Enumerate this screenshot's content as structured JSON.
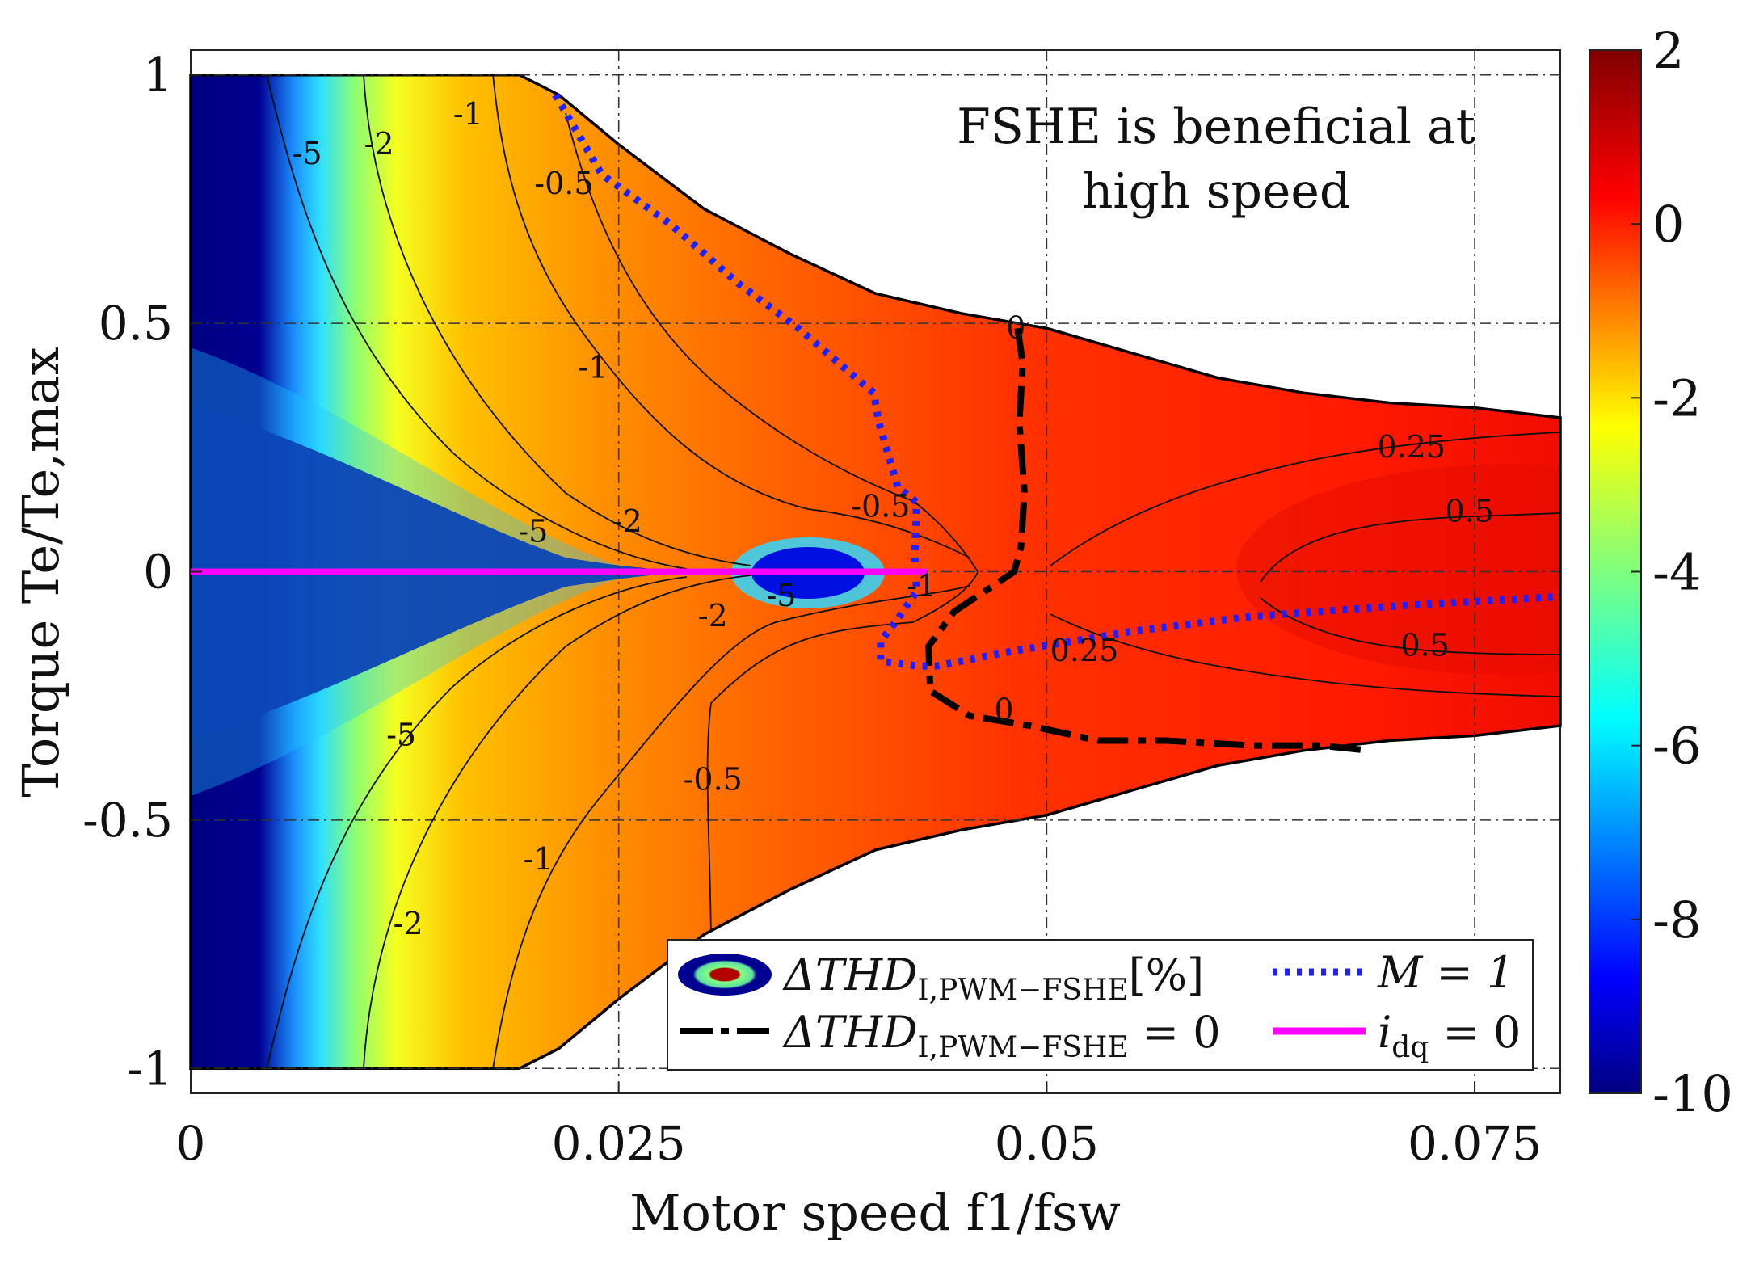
{
  "chart_data": {
    "type": "heatmap",
    "title": "",
    "xlabel": "Motor speed f1/fsw",
    "ylabel": "Torque Te/Te,max",
    "xlim": [
      0,
      0.08
    ],
    "ylim": [
      -1.05,
      1.05
    ],
    "x_ticks": [
      "0",
      "0.025",
      "0.05",
      "0.075"
    ],
    "x_tick_values": [
      0,
      0.025,
      0.05,
      0.075
    ],
    "y_ticks": [
      "1",
      "0.5",
      "0",
      "-0.5",
      "-1"
    ],
    "y_tick_values": [
      1,
      0.5,
      0,
      -0.5,
      -1
    ],
    "grid": true,
    "colormap": "jet",
    "colorbar": {
      "range": [
        -10,
        2
      ],
      "ticks": [
        "2",
        "0",
        "-2",
        "-4",
        "-6",
        "-8",
        "-10"
      ],
      "tick_values": [
        2,
        0,
        -2,
        -4,
        -6,
        -8,
        -10
      ]
    },
    "annotation": [
      "FSHE is beneficial at",
      "high speed"
    ],
    "contour_labels": [
      {
        "text": "-5",
        "x": 0.0068,
        "y": 0.84
      },
      {
        "text": "-2",
        "x": 0.011,
        "y": 0.86
      },
      {
        "text": "-1",
        "x": 0.0162,
        "y": 0.92
      },
      {
        "text": "-0.5",
        "x": 0.0218,
        "y": 0.78
      },
      {
        "text": "-1",
        "x": 0.0235,
        "y": 0.41
      },
      {
        "text": "-5",
        "x": 0.02,
        "y": 0.08
      },
      {
        "text": "-2",
        "x": 0.0255,
        "y": 0.1
      },
      {
        "text": "-0.5",
        "x": 0.0403,
        "y": 0.13
      },
      {
        "text": "-5",
        "x": 0.0345,
        "y": -0.05
      },
      {
        "text": "-2",
        "x": 0.0305,
        "y": -0.09
      },
      {
        "text": "-1",
        "x": 0.0427,
        "y": -0.03
      },
      {
        "text": "-5",
        "x": 0.0123,
        "y": -0.33
      },
      {
        "text": "-0.5",
        "x": 0.0305,
        "y": -0.42
      },
      {
        "text": "-1",
        "x": 0.0203,
        "y": -0.58
      },
      {
        "text": "-2",
        "x": 0.0127,
        "y": -0.71
      },
      {
        "text": "0",
        "x": 0.0482,
        "y": 0.49
      },
      {
        "text": "0.25",
        "x": 0.0713,
        "y": 0.25
      },
      {
        "text": "0.5",
        "x": 0.0747,
        "y": 0.12
      },
      {
        "text": "0.25",
        "x": 0.0522,
        "y": -0.16
      },
      {
        "text": "0.5",
        "x": 0.0721,
        "y": -0.15
      },
      {
        "text": "0",
        "x": 0.0475,
        "y": -0.28
      }
    ],
    "series": [
      {
        "name": "ΔTHDI,PWM−FSHE = 0",
        "style": "dash-dot",
        "color": "#000000",
        "x": [
          0.0483,
          0.0486,
          0.0484,
          0.0487,
          0.0485,
          0.0481,
          0.0468,
          0.0446,
          0.0431,
          0.0432,
          0.0455,
          0.049,
          0.053,
          0.057,
          0.062,
          0.066,
          0.0688
        ],
        "y": [
          0.49,
          0.42,
          0.3,
          0.16,
          0.05,
          0.0,
          -0.03,
          -0.08,
          -0.15,
          -0.24,
          -0.29,
          -0.31,
          -0.34,
          -0.34,
          -0.35,
          -0.35,
          -0.36
        ]
      },
      {
        "name": "M = 1",
        "style": "dotted",
        "color": "#1f1fff",
        "x": [
          0.0213,
          0.024,
          0.028,
          0.032,
          0.0355,
          0.0392,
          0.0399,
          0.0402,
          0.0408,
          0.0413,
          0.0424,
          0.0423,
          0.0424,
          0.0412,
          0.0403,
          0.0403,
          0.0425,
          0.0435,
          0.048,
          0.055,
          0.062,
          0.07,
          0.08
        ],
        "y": [
          0.96,
          0.8,
          0.7,
          0.58,
          0.49,
          0.38,
          0.36,
          0.3,
          0.23,
          0.17,
          0.14,
          0.03,
          -0.04,
          -0.1,
          -0.14,
          -0.18,
          -0.19,
          -0.19,
          -0.16,
          -0.12,
          -0.09,
          -0.07,
          -0.05
        ]
      },
      {
        "name": "idq = 0",
        "style": "solid",
        "color": "#ff00ff",
        "x": [
          0,
          0.043
        ],
        "y": [
          0,
          0
        ]
      }
    ],
    "envelope": {
      "x": [
        0,
        0.0192,
        0.0215,
        0.025,
        0.03,
        0.035,
        0.04,
        0.045,
        0.05,
        0.055,
        0.06,
        0.065,
        0.07,
        0.075,
        0.08
      ],
      "y_upper": [
        1,
        1,
        0.96,
        0.86,
        0.73,
        0.64,
        0.56,
        0.52,
        0.49,
        0.44,
        0.39,
        0.36,
        0.34,
        0.33,
        0.31
      ],
      "y_lower": [
        -1,
        -1,
        -0.96,
        -0.86,
        -0.73,
        -0.64,
        -0.56,
        -0.52,
        -0.49,
        -0.44,
        -0.39,
        -0.36,
        -0.34,
        -0.33,
        -0.31
      ]
    },
    "legend": {
      "placement": "bottom-right",
      "entries": [
        {
          "label": "ΔTHD",
          "sub": "I,PWM−FSHE",
          "suffix": "[%]",
          "icon": "ellipse-colormap"
        },
        {
          "label": "M = 1",
          "sub": "",
          "suffix": "",
          "icon": "dotted-blue"
        },
        {
          "label": "ΔTHD",
          "sub": "I,PWM−FSHE",
          "suffix": " = 0",
          "icon": "dashdot-black"
        },
        {
          "label": "i",
          "sub": "dq",
          "suffix": " = 0",
          "icon": "solid-magenta"
        }
      ]
    }
  }
}
